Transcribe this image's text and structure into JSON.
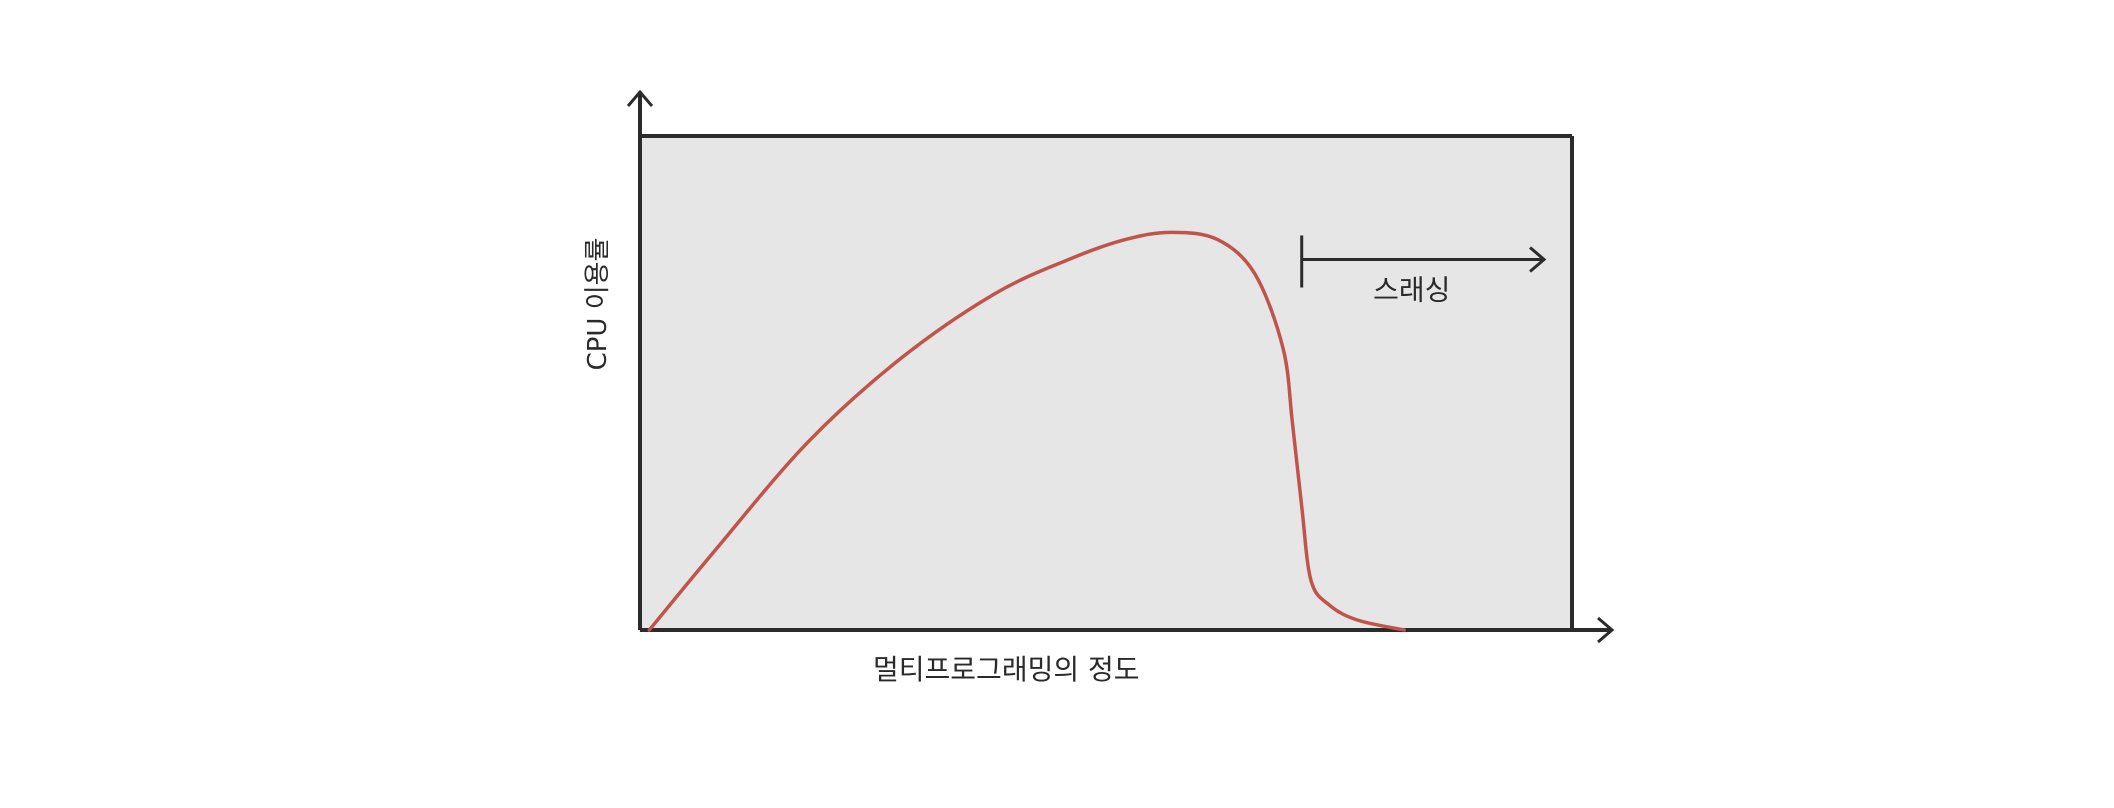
{
  "chart_data": {
    "type": "line",
    "title": "",
    "xlabel": "멀티프로그래밍의 정도",
    "ylabel": "CPU 이용률",
    "xlim": [
      0,
      1
    ],
    "ylim": [
      0,
      1
    ],
    "grid": false,
    "legend": "none",
    "colors": {
      "plot_background": "#e6e6e6",
      "axis": "#2b2b2b",
      "curve": "#c0544a"
    },
    "series": [
      {
        "x": [
          0.01,
          0.08,
          0.18,
          0.28,
          0.38,
          0.46,
          0.52,
          0.57,
          0.62,
          0.66,
          0.69,
          0.7,
          0.71,
          0.72,
          0.74,
          0.77,
          0.82
        ],
        "y": [
          0.0,
          0.16,
          0.38,
          0.55,
          0.68,
          0.75,
          0.79,
          0.805,
          0.79,
          0.72,
          0.57,
          0.42,
          0.25,
          0.1,
          0.05,
          0.02,
          0.0
        ]
      }
    ],
    "annotations": [
      {
        "label": "스래싱",
        "arrow_from_x": 0.71,
        "arrow_to_x": 0.97,
        "y": 0.75
      }
    ]
  }
}
